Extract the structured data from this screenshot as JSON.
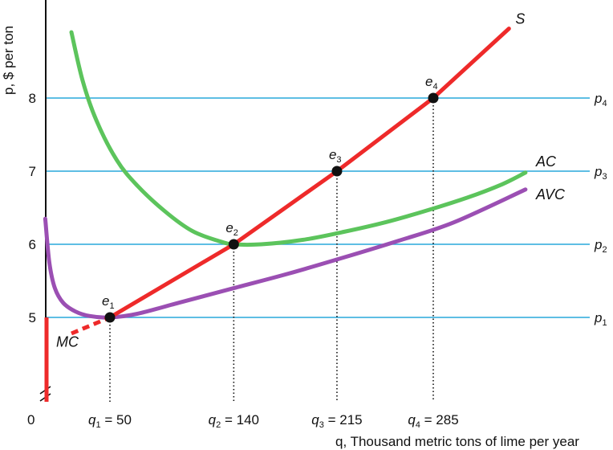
{
  "chart_data": {
    "type": "line",
    "xlabel": "q, Thousand metric tons of lime per year",
    "ylabel": "p, $ per ton",
    "origin_label": "0",
    "y_ticks": [
      5,
      6,
      7,
      8
    ],
    "xlim": [
      0,
      400
    ],
    "ylim": [
      3.9,
      9.3
    ],
    "y_axis_break": true,
    "colors": {
      "supply": "#ee2a2a",
      "ac": "#5cc45c",
      "avc": "#9b4fb3",
      "price_lines": "#29a8dc",
      "points": "#111111"
    },
    "price_lines": [
      {
        "label": "p",
        "sub": "1",
        "y": 5
      },
      {
        "label": "p",
        "sub": "2",
        "y": 6
      },
      {
        "label": "p",
        "sub": "3",
        "y": 7
      },
      {
        "label": "p",
        "sub": "4",
        "y": 8
      }
    ],
    "equilibria": [
      {
        "label": "e",
        "sub": "1",
        "x": 50,
        "y": 5,
        "q_label": "q",
        "q_sub": "1",
        "q_value": "= 50"
      },
      {
        "label": "e",
        "sub": "2",
        "x": 140,
        "y": 6,
        "q_label": "q",
        "q_sub": "2",
        "q_value": "= 140"
      },
      {
        "label": "e",
        "sub": "3",
        "x": 215,
        "y": 7,
        "q_label": "q",
        "q_sub": "3",
        "q_value": "= 215"
      },
      {
        "label": "e",
        "sub": "4",
        "x": 285,
        "y": 8,
        "q_label": "q",
        "q_sub": "4",
        "q_value": "= 285"
      }
    ],
    "series": [
      {
        "name": "S",
        "key": "supply",
        "x": [
          50,
          140,
          215,
          285,
          340
        ],
        "y": [
          5,
          6,
          7,
          8,
          8.95
        ]
      },
      {
        "name": "MC",
        "key": "mc",
        "style": "dashed",
        "x": [
          22,
          50
        ],
        "y": [
          4.78,
          5
        ]
      },
      {
        "name": "AC",
        "key": "ac",
        "x": [
          22,
          30,
          40,
          55,
          70,
          90,
          110,
          130,
          140,
          160,
          190,
          220,
          250,
          280,
          310,
          335,
          352
        ],
        "y": [
          8.9,
          8.25,
          7.7,
          7.15,
          6.8,
          6.45,
          6.18,
          6.04,
          6.0,
          6.0,
          6.06,
          6.17,
          6.3,
          6.46,
          6.64,
          6.82,
          6.98
        ]
      },
      {
        "name": "AVC",
        "key": "avc",
        "x": [
          3,
          6,
          10,
          16,
          25,
          35,
          50,
          70,
          100,
          140,
          180,
          220,
          260,
          300,
          352
        ],
        "y": [
          6.35,
          5.75,
          5.4,
          5.2,
          5.08,
          5.02,
          5.0,
          5.05,
          5.2,
          5.4,
          5.6,
          5.82,
          6.05,
          6.3,
          6.75
        ]
      }
    ]
  }
}
